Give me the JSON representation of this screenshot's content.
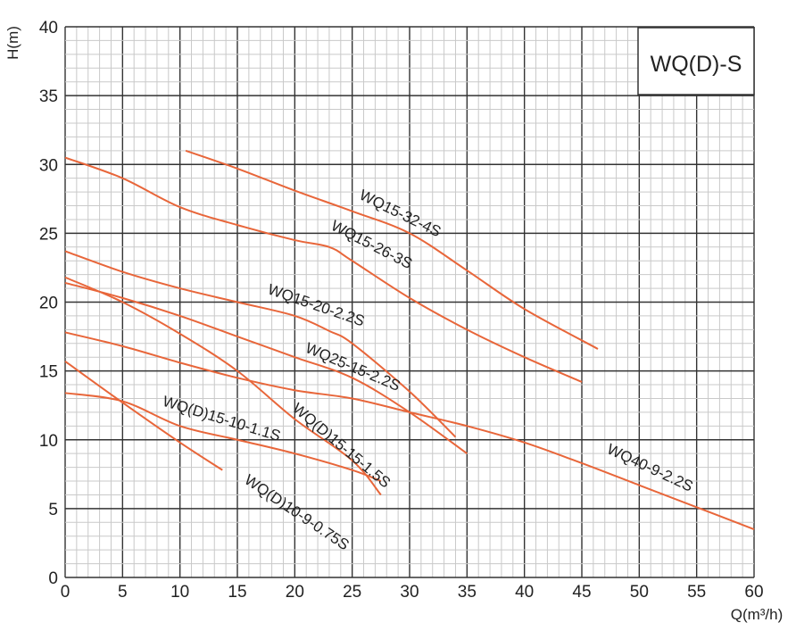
{
  "chart_data": {
    "type": "line",
    "title": "WQ(D)-S",
    "xlabel": "Q(m³/h)",
    "ylabel": "H(m)",
    "xlim": [
      0,
      60
    ],
    "ylim": [
      0,
      40
    ],
    "x_ticks": [
      0,
      5,
      10,
      15,
      20,
      25,
      30,
      35,
      40,
      45,
      50,
      55,
      60
    ],
    "y_ticks": [
      0,
      5,
      10,
      15,
      20,
      25,
      30,
      35,
      40
    ],
    "grid": true,
    "minor_grid_step": 1,
    "line_color": "#e8663a",
    "series": [
      {
        "name": "WQ15-32-4S",
        "points": [
          [
            10.5,
            31
          ],
          [
            15,
            29.7
          ],
          [
            20,
            28.1
          ],
          [
            25,
            26.6
          ],
          [
            30,
            25
          ],
          [
            35,
            22.3
          ],
          [
            40,
            19.5
          ],
          [
            46.4,
            16.6
          ]
        ]
      },
      {
        "name": "WQ15-26-3S",
        "points": [
          [
            0,
            30.5
          ],
          [
            5,
            29
          ],
          [
            10,
            26.9
          ],
          [
            15,
            25.6
          ],
          [
            20,
            24.5
          ],
          [
            23,
            24
          ],
          [
            25,
            23
          ],
          [
            30,
            20.3
          ],
          [
            35,
            18
          ],
          [
            40,
            16
          ],
          [
            45,
            14.2
          ]
        ]
      },
      {
        "name": "WQ15-20-2.2S",
        "points": [
          [
            0,
            23.7
          ],
          [
            5,
            22.2
          ],
          [
            10,
            21
          ],
          [
            15,
            20
          ],
          [
            20,
            19
          ],
          [
            23,
            17.9
          ],
          [
            25,
            17
          ],
          [
            30,
            13.5
          ],
          [
            34,
            10.2
          ]
        ]
      },
      {
        "name": "WQ25-15-2.2S",
        "points": [
          [
            0,
            21.4
          ],
          [
            5,
            20.3
          ],
          [
            10,
            19
          ],
          [
            15,
            17.5
          ],
          [
            20,
            16
          ],
          [
            25,
            14.5
          ],
          [
            30,
            12
          ],
          [
            35,
            9
          ]
        ]
      },
      {
        "name": "WQ(D)15-15-1.5S",
        "points": [
          [
            0,
            21.8
          ],
          [
            5,
            20
          ],
          [
            10,
            17.7
          ],
          [
            15,
            15
          ],
          [
            20,
            11.5
          ],
          [
            25,
            8.5
          ],
          [
            27.5,
            6
          ]
        ]
      },
      {
        "name": "WQ40-9-2.2S",
        "points": [
          [
            0,
            17.8
          ],
          [
            5,
            16.8
          ],
          [
            10,
            15.6
          ],
          [
            15,
            14.5
          ],
          [
            20,
            13.6
          ],
          [
            25,
            13
          ],
          [
            30,
            12
          ],
          [
            35,
            11
          ],
          [
            40,
            9.8
          ],
          [
            45,
            8.3
          ],
          [
            50,
            6.7
          ],
          [
            55,
            5.1
          ],
          [
            60,
            3.5
          ]
        ]
      },
      {
        "name": "WQ(D)15-10-1.1S",
        "points": [
          [
            0,
            13.4
          ],
          [
            5,
            12.8
          ],
          [
            10,
            11
          ],
          [
            15,
            10
          ],
          [
            20,
            9
          ],
          [
            25,
            7.8
          ],
          [
            27.5,
            7
          ]
        ]
      },
      {
        "name": "WQ(D)10-9-0.75S",
        "points": [
          [
            0,
            15.7
          ],
          [
            5,
            12.7
          ],
          [
            10,
            9.8
          ],
          [
            13.7,
            7.8
          ]
        ]
      }
    ]
  }
}
